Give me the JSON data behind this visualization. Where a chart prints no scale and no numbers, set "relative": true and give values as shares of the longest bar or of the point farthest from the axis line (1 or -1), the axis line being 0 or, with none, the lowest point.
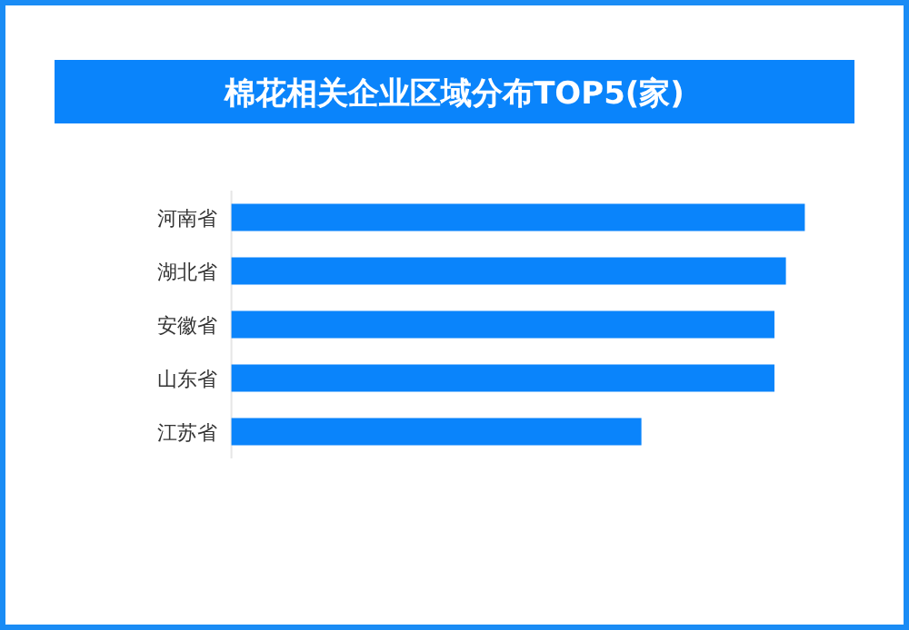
{
  "chart_data": {
    "type": "bar",
    "title": "棉花相关企业区域分布TOP5(家)",
    "orientation": "horizontal",
    "relative": true,
    "categories": [
      "河南省",
      "湖北省",
      "安徽省",
      "山东省",
      "江苏省"
    ],
    "values": [
      1,
      0.967,
      0.947,
      0.947,
      0.715
    ],
    "color": "#0a84fb"
  }
}
